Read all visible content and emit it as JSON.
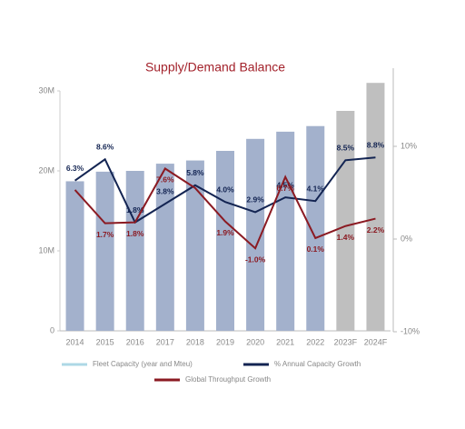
{
  "chart_data": {
    "type": "bar-line",
    "title": "Supply/Demand Balance",
    "categories": [
      "2014",
      "2015",
      "2016",
      "2017",
      "2018",
      "2019",
      "2020",
      "2021",
      "2022",
      "2023F",
      "2024F"
    ],
    "ylim": [
      0,
      30
    ],
    "yticks": [
      {
        "value": 0,
        "label": "0"
      },
      {
        "value": 10,
        "label": "10M"
      },
      {
        "value": 20,
        "label": "20M"
      },
      {
        "value": 30,
        "label": "30M"
      }
    ],
    "y2lim": [
      -10,
      10
    ],
    "y2ticks": [
      {
        "value": -10,
        "label": "-10%"
      },
      {
        "value": 0,
        "label": "0%"
      },
      {
        "value": 10,
        "label": "10%"
      }
    ],
    "series": [
      {
        "name": "Fleet Capacity (year and Mteu)",
        "type": "bar",
        "color": "#add8e6",
        "bar_colors": [
          "#a3b1cc",
          "#a3b1cc",
          "#a3b1cc",
          "#a3b1cc",
          "#a3b1cc",
          "#a3b1cc",
          "#a3b1cc",
          "#a3b1cc",
          "#a3b1cc",
          "#bfbfbf",
          "#bfbfbf"
        ],
        "values": [
          18.7,
          19.9,
          20.0,
          20.9,
          21.3,
          22.5,
          24.0,
          24.9,
          25.6,
          27.5,
          31.0
        ]
      },
      {
        "name": "% Annual Capacity Growth",
        "type": "line",
        "axis": "y2",
        "color": "#132452",
        "values": [
          6.3,
          8.6,
          1.8,
          3.8,
          5.8,
          4.0,
          2.9,
          4.5,
          4.1,
          8.5,
          8.8
        ],
        "value_labels": [
          "6.3%",
          "8.6%",
          "1.8%",
          "3.8%",
          "5.8%",
          "4.0%",
          "2.9%",
          "4.5%",
          "4.1%",
          "8.5%",
          "8.8%"
        ]
      },
      {
        "name": "Global Throughput Growth",
        "type": "line",
        "axis": "y2",
        "color": "#8b1a22",
        "values": [
          5.3,
          1.7,
          1.8,
          7.6,
          5.5,
          1.9,
          -1.0,
          6.7,
          0.1,
          1.4,
          2.2
        ],
        "value_labels": [
          null,
          "1.7%",
          "1.8%",
          "7.6%",
          null,
          "1.9%",
          "-1.0%",
          "6.7%",
          "0.1%",
          "1.4%",
          "2.2%"
        ]
      }
    ]
  }
}
